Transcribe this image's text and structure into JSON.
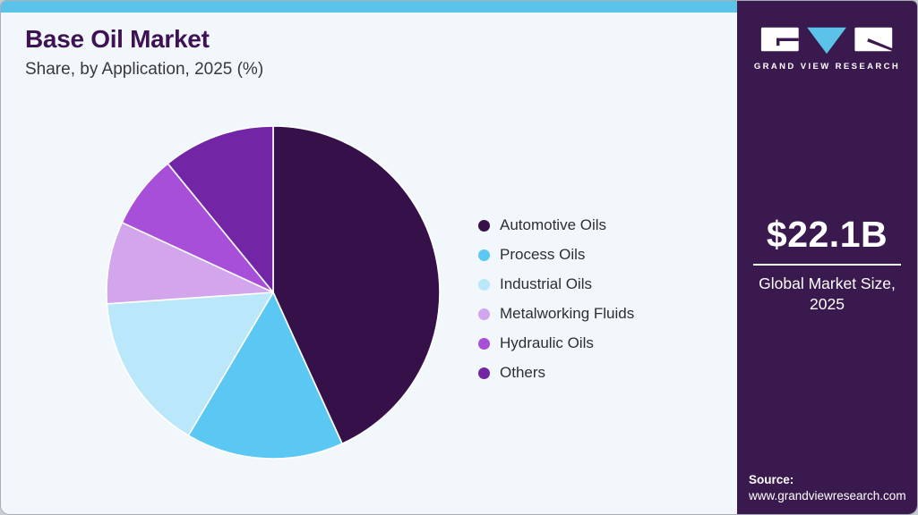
{
  "header": {
    "title": "Base Oil Market",
    "subtitle": "Share, by Application, 2025 (%)"
  },
  "brand": {
    "name": "GRAND VIEW RESEARCH",
    "accent_blue": "#5bc2e9",
    "sidebar_bg": "#3a1a4e",
    "title_color": "#3e1254"
  },
  "market_size": {
    "value": "$22.1B",
    "label": "Global Market Size, 2025",
    "label_line1": "Global Market Size,",
    "label_line2": "2025"
  },
  "source": {
    "label": "Source:",
    "url": "www.grandviewresearch.com"
  },
  "chart_data": {
    "type": "pie",
    "title": "Base Oil Market Share, by Application, 2025 (%)",
    "unit": "%",
    "start_angle": "top",
    "direction": "clockwise",
    "legend_position": "right",
    "categories": [
      "Automotive Oils",
      "Process Oils",
      "Industrial Oils",
      "Metalworking Fluids",
      "Hydraulic Oils",
      "Others"
    ],
    "values": [
      43.2,
      15.3,
      15.4,
      8.0,
      7.2,
      10.9
    ],
    "colors": [
      "#361149",
      "#5bc7f3",
      "#bae7fa",
      "#d2a5ec",
      "#a74fd9",
      "#7226a6"
    ],
    "slice_gap_color": "#ffffff"
  }
}
